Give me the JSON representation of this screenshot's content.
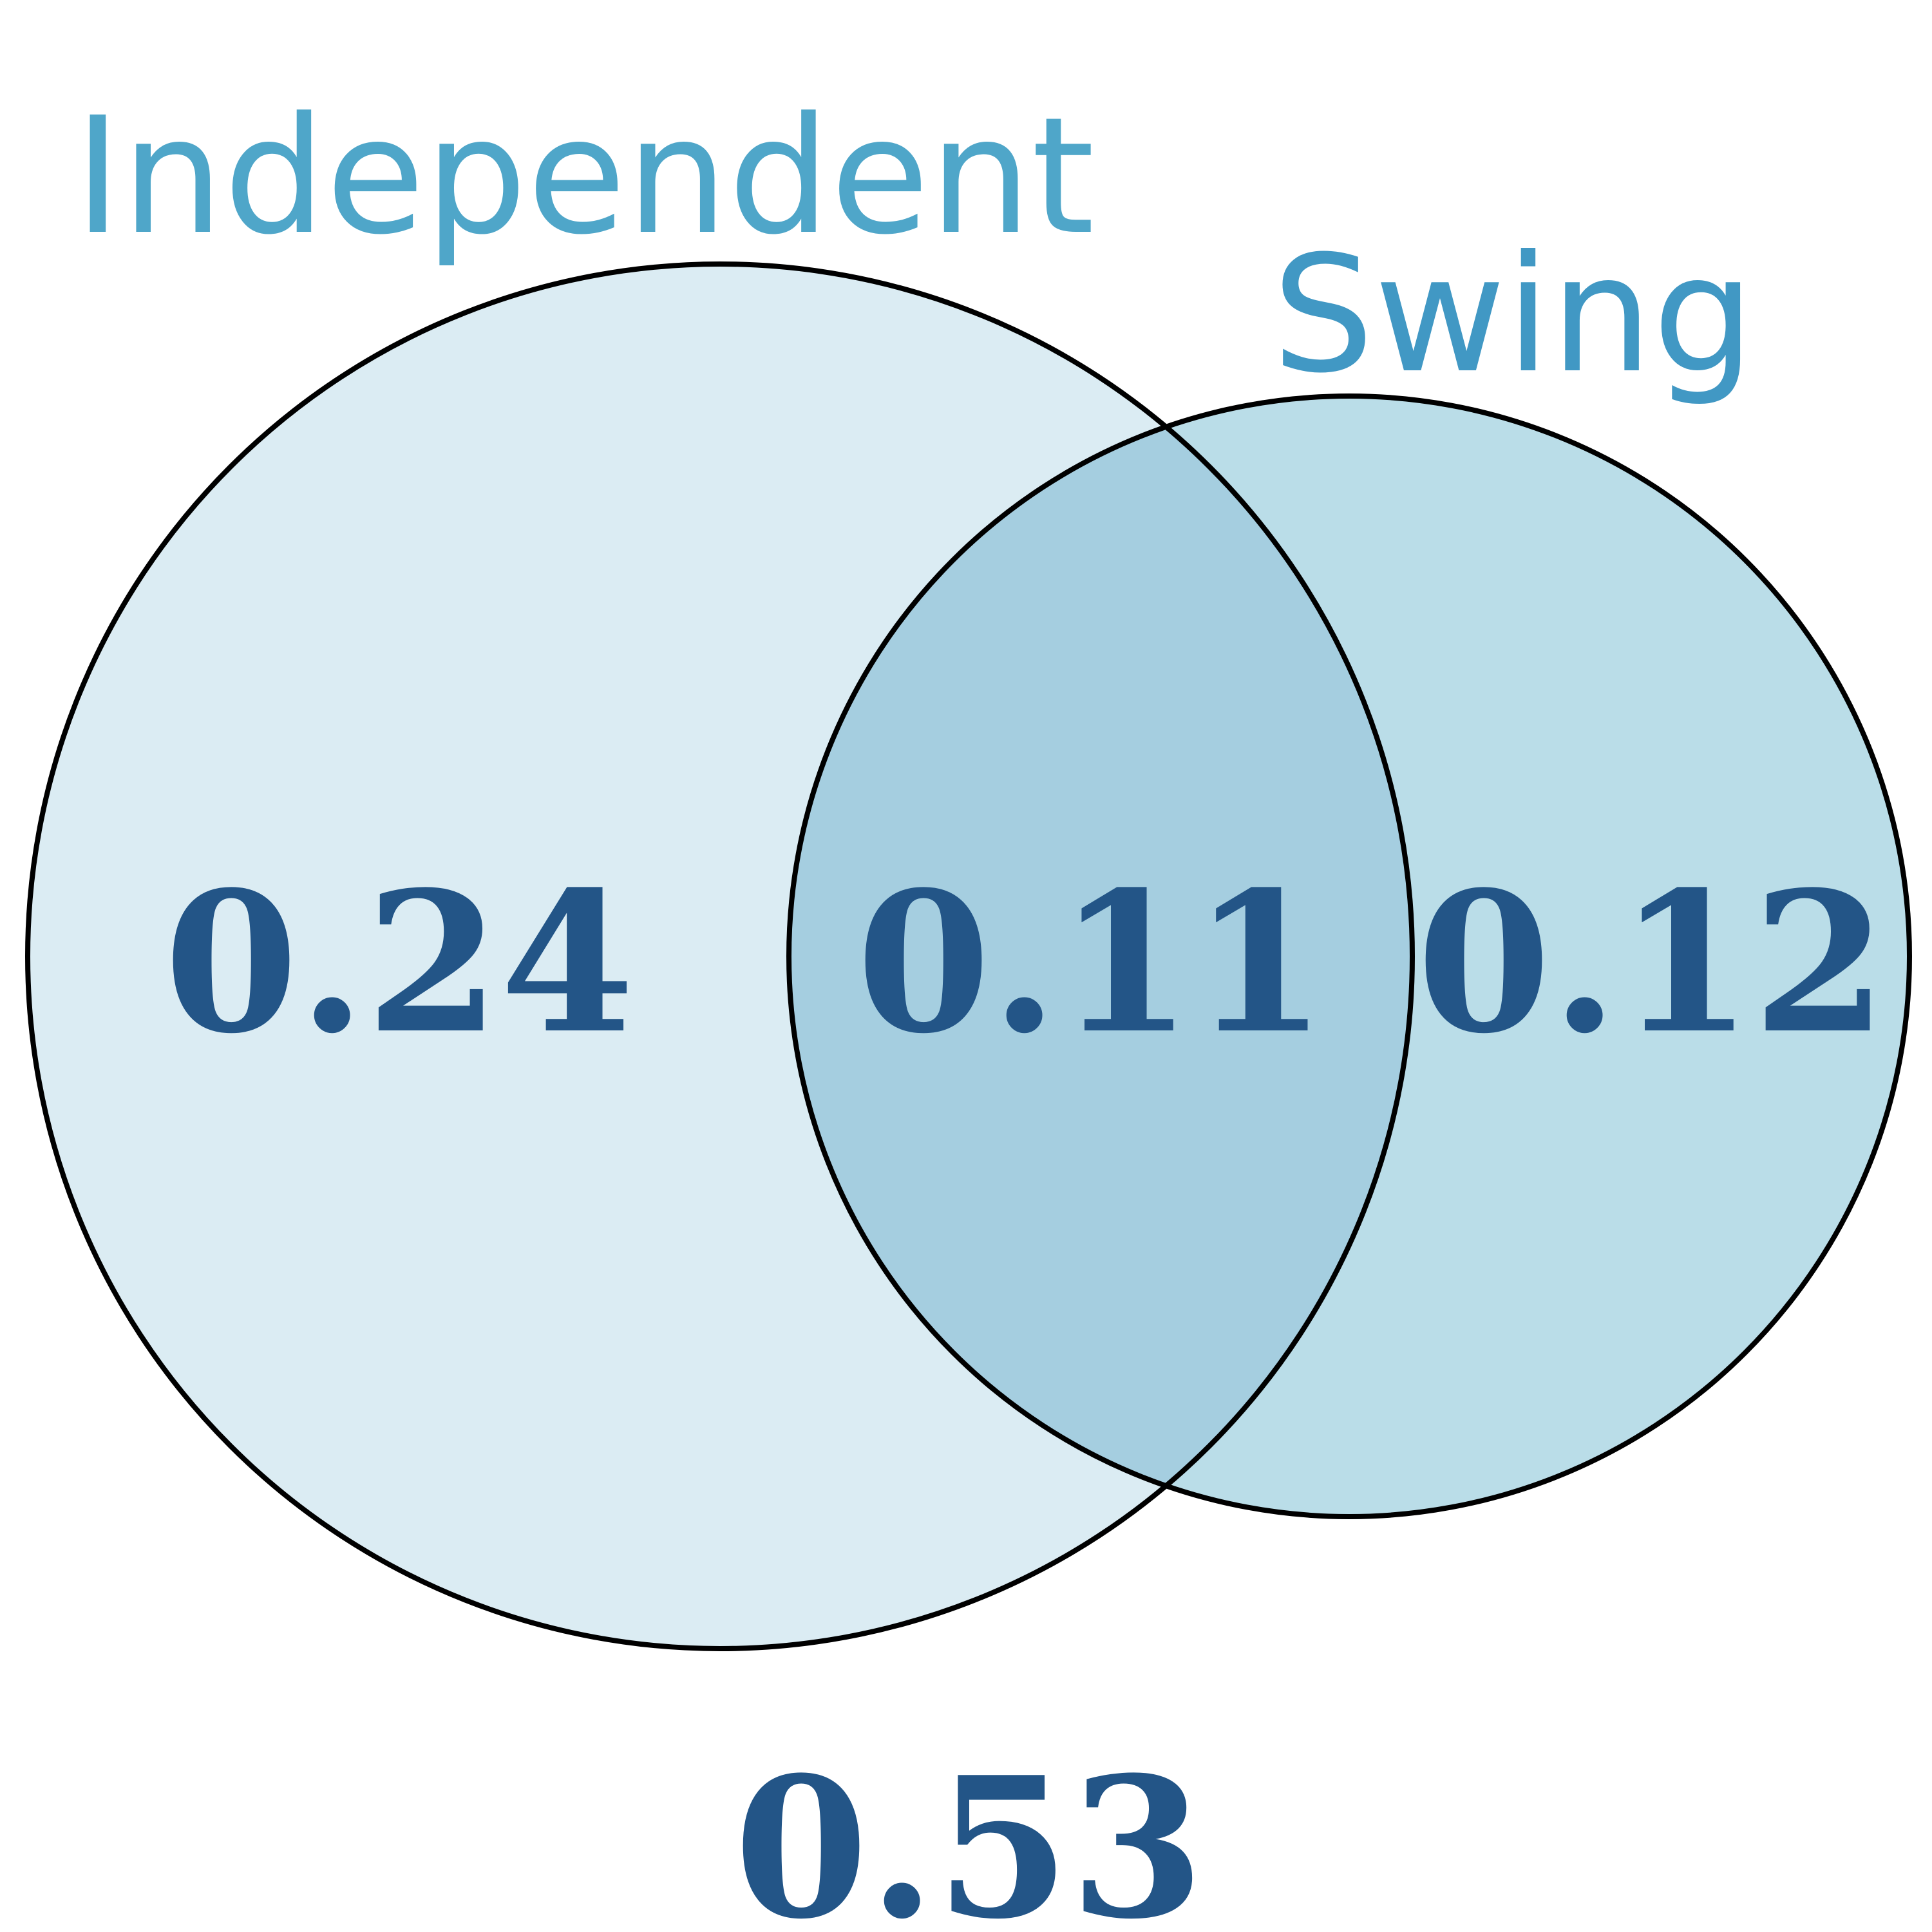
{
  "sets": [
    {
      "id": "independent",
      "label": "Independent",
      "fill": "#dbecf3"
    },
    {
      "id": "swing",
      "label": "Swing",
      "fill": "#badde8"
    }
  ],
  "regions": {
    "independent_only": "0.24",
    "intersection": "0.11",
    "swing_only": "0.12",
    "outside": "0.53"
  },
  "colors": {
    "intersection_fill": "#a5cee0",
    "outline": "#000000",
    "independent_label": "#4fa6c9",
    "swing_label": "#4198c4",
    "value_text": "#235587"
  }
}
